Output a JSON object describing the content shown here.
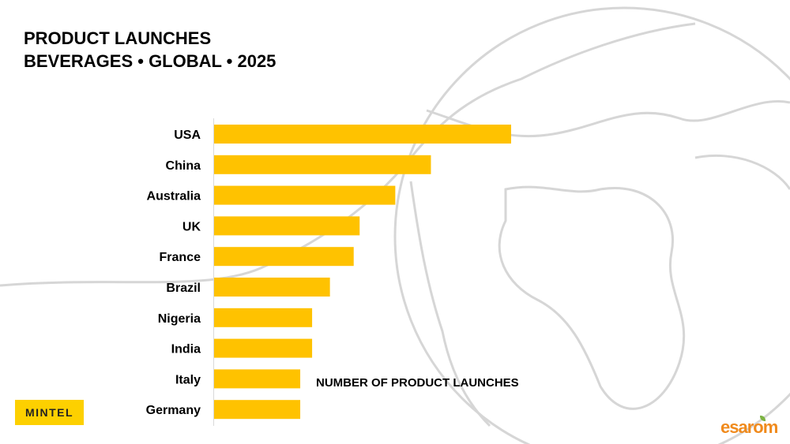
{
  "title_lines": [
    "PRODUCT LAUNCHES",
    "BEVERAGES • GLOBAL • 2025"
  ],
  "logos": {
    "left": "MINTEL",
    "right": "esarom"
  },
  "colors": {
    "bar": "#FFC200",
    "globe": "#d6d6d6",
    "brand_left": "#FDD000",
    "brand_right": "#F08A1C"
  },
  "chart_data": {
    "type": "bar",
    "orientation": "horizontal",
    "title": "PRODUCT LAUNCHES BEVERAGES • GLOBAL • 2025",
    "xlabel": "NUMBER OF PRODUCT LAUNCHES",
    "value_note": "relative (USA = 100), no axis printed",
    "categories": [
      "USA",
      "China",
      "Australia",
      "UK",
      "France",
      "Brazil",
      "Nigeria",
      "India",
      "Italy",
      "Germany"
    ],
    "values": [
      100,
      73,
      61,
      49,
      47,
      39,
      33,
      33,
      29,
      29
    ],
    "grid": false,
    "legend": "none"
  }
}
